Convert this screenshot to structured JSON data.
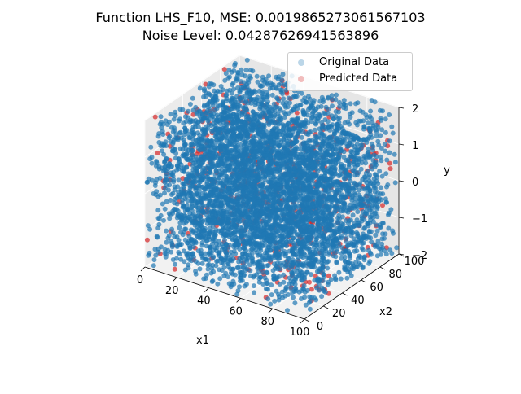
{
  "chart_data": {
    "type": "scatter",
    "projection": "3d",
    "title_lines": [
      "Function LHS_F10, MSE: 0.0019865273061567103",
      "Noise Level: 0.04287626941563896"
    ],
    "xlabel": "x1",
    "ylabel": "x2",
    "zlabel": "y",
    "xlim": [
      0,
      100
    ],
    "ylim": [
      0,
      100
    ],
    "zlim": [
      -2,
      2
    ],
    "x_ticks": [
      "0",
      "20",
      "40",
      "60",
      "80",
      "100"
    ],
    "y_ticks": [
      "0",
      "20",
      "40",
      "60",
      "80",
      "100"
    ],
    "z_ticks": [
      "−2",
      "−1",
      "0",
      "1",
      "2"
    ],
    "grid": true,
    "legend_position": "upper-right",
    "series": [
      {
        "name": "Original Data",
        "color": "#1f77b4",
        "alpha": 0.2
      },
      {
        "name": "Predicted Data",
        "color": "#d62728",
        "alpha": 0.2
      }
    ],
    "data_coverage": {
      "x1": [
        0,
        100
      ],
      "x2": [
        0,
        100
      ],
      "y": [
        -2,
        2
      ]
    }
  }
}
